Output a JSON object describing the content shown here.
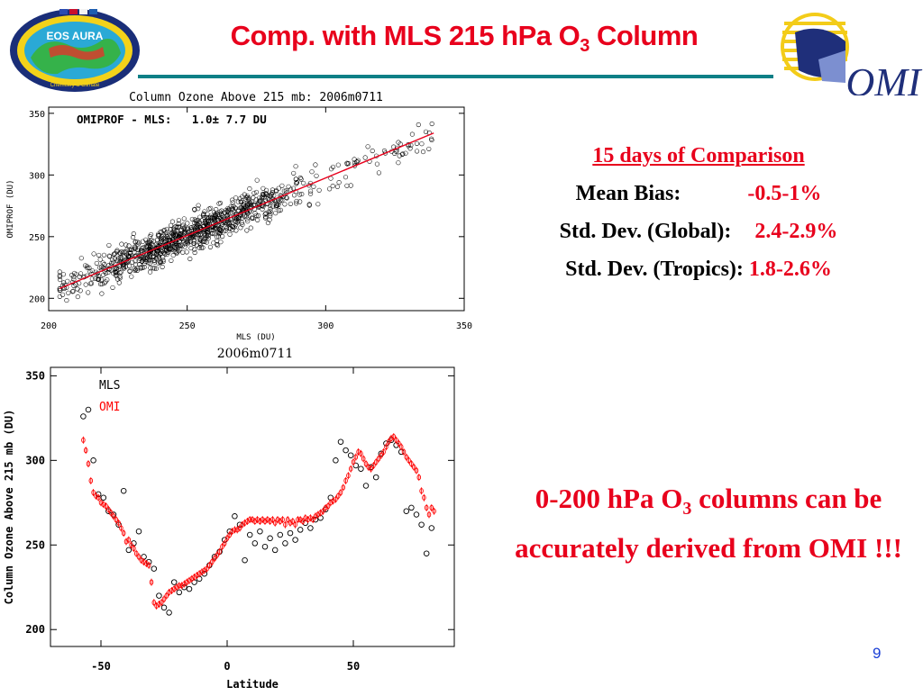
{
  "header": {
    "title_main": "Comp. with MLS 215 hPa O",
    "title_sub": "3",
    "title_tail": " Column"
  },
  "logos": {
    "aura_text": "EOS AURA",
    "aura_ring_text": "Chemistry & Climate",
    "omi_text": "OMI"
  },
  "stats": {
    "heading": "15 days of Comparison",
    "rows": [
      {
        "label": "Mean Bias:",
        "value": "-0.5-1%"
      },
      {
        "label": "Std. Dev. (Global):",
        "value": "2.4-2.9%"
      },
      {
        "label": "Std. Dev. (Tropics):",
        "value": "1.8-2.6%"
      }
    ]
  },
  "conclusion": {
    "part1": "0-200 hPa O",
    "sub": "3",
    "part2": " columns can be accurately derived from OMI !!!"
  },
  "page_number": "9",
  "colors": {
    "accent_red": "#e8001c",
    "rule_teal": "#0e7f86",
    "page_number_blue": "#1a3fd6",
    "omi_series": "#ff0000",
    "mls_series": "#000000"
  },
  "chart_data": [
    {
      "type": "scatter",
      "title": "Column Ozone Above 215 mb: 2006m0711",
      "annotation": "OMIPROF - MLS:   1.0± 7.7 DU",
      "xlabel": "MLS (DU)",
      "ylabel": "OMIPROF (DU)",
      "xlim": [
        200,
        350
      ],
      "ylim": [
        190,
        355
      ],
      "xticks": [
        200,
        250,
        300,
        350
      ],
      "yticks": [
        200,
        250,
        300,
        350
      ],
      "fit_line": {
        "x": [
          204,
          339
        ],
        "y": [
          208,
          334
        ]
      },
      "points_summary": {
        "n_approx": 1000,
        "x_range": [
          204,
          339
        ],
        "mean_diff": 1.0,
        "std_diff": 7.7
      }
    },
    {
      "type": "scatter",
      "title": "2006m0711",
      "xlabel": "Latitude",
      "ylabel": "Column Ozone Above 215 mb (DU)",
      "xlim": [
        -70,
        90
      ],
      "ylim": [
        190,
        355
      ],
      "xticks": [
        -50,
        0,
        50
      ],
      "yticks": [
        200,
        250,
        300,
        350
      ],
      "series": [
        {
          "name": "MLS",
          "x": [
            -57,
            -55,
            -53,
            -51,
            -49,
            -47,
            -45,
            -43,
            -41,
            -39,
            -37,
            -35,
            -33,
            -31,
            -29,
            -27,
            -25,
            -23,
            -21,
            -19,
            -17,
            -15,
            -13,
            -11,
            -9,
            -7,
            -5,
            -3,
            -1,
            1,
            3,
            5,
            7,
            9,
            11,
            13,
            15,
            17,
            19,
            21,
            23,
            25,
            27,
            29,
            31,
            33,
            35,
            37,
            39,
            41,
            43,
            45,
            47,
            49,
            51,
            53,
            55,
            57,
            59,
            61,
            63,
            65,
            67,
            69,
            71,
            73,
            75,
            77,
            79,
            81
          ],
          "y": [
            326,
            330,
            300,
            280,
            278,
            270,
            268,
            262,
            282,
            247,
            251,
            258,
            243,
            240,
            236,
            220,
            213,
            210,
            228,
            222,
            225,
            224,
            228,
            230,
            233,
            238,
            243,
            246,
            253,
            258,
            267,
            262,
            241,
            256,
            251,
            258,
            249,
            254,
            247,
            256,
            251,
            257,
            253,
            259,
            263,
            260,
            265,
            266,
            271,
            278,
            300,
            311,
            306,
            303,
            297,
            295,
            285,
            296,
            290,
            304,
            310,
            312,
            309,
            305,
            270,
            272,
            268,
            262,
            245,
            260
          ]
        },
        {
          "name": "OMI",
          "x": [
            -57,
            -56,
            -55,
            -54,
            -53,
            -52,
            -51,
            -50,
            -49,
            -48,
            -47,
            -46,
            -45,
            -44,
            -43,
            -42,
            -41,
            -40,
            -39,
            -38,
            -37,
            -36,
            -35,
            -34,
            -33,
            -32,
            -31,
            -30,
            -29,
            -28,
            -27,
            -26,
            -25,
            -24,
            -23,
            -22,
            -21,
            -20,
            -19,
            -18,
            -17,
            -16,
            -15,
            -14,
            -13,
            -12,
            -11,
            -10,
            -9,
            -8,
            -7,
            -6,
            -5,
            -4,
            -3,
            -2,
            -1,
            0,
            1,
            2,
            3,
            4,
            5,
            6,
            7,
            8,
            9,
            10,
            11,
            12,
            13,
            14,
            15,
            16,
            17,
            18,
            19,
            20,
            21,
            22,
            23,
            24,
            25,
            26,
            27,
            28,
            29,
            30,
            31,
            32,
            33,
            34,
            35,
            36,
            37,
            38,
            39,
            40,
            41,
            42,
            43,
            44,
            45,
            46,
            47,
            48,
            49,
            50,
            51,
            52,
            53,
            54,
            55,
            56,
            57,
            58,
            59,
            60,
            61,
            62,
            63,
            64,
            65,
            66,
            67,
            68,
            69,
            70,
            71,
            72,
            73,
            74,
            75,
            76,
            77,
            78,
            79,
            80,
            81,
            82
          ],
          "y": [
            312,
            306,
            298,
            288,
            281,
            279,
            278,
            275,
            274,
            273,
            271,
            269,
            267,
            265,
            263,
            260,
            257,
            252,
            253,
            250,
            248,
            245,
            243,
            241,
            240,
            239,
            238,
            228,
            216,
            214,
            215,
            216,
            218,
            220,
            222,
            223,
            224,
            225,
            226,
            226,
            227,
            228,
            229,
            230,
            231,
            232,
            233,
            234,
            235,
            236,
            238,
            240,
            242,
            244,
            246,
            249,
            251,
            254,
            256,
            258,
            259,
            259,
            260,
            262,
            263,
            264,
            265,
            265,
            264,
            265,
            264,
            265,
            264,
            265,
            264,
            265,
            263,
            265,
            264,
            265,
            262,
            265,
            263,
            264,
            262,
            265,
            265,
            264,
            266,
            265,
            266,
            265,
            267,
            268,
            269,
            270,
            272,
            273,
            275,
            276,
            277,
            279,
            281,
            284,
            288,
            291,
            295,
            299,
            302,
            305,
            304,
            301,
            298,
            296,
            295,
            297,
            299,
            301,
            303,
            305,
            308,
            311,
            313,
            314,
            312,
            310,
            308,
            305,
            302,
            300,
            298,
            296,
            294,
            290,
            282,
            278,
            272,
            268,
            272,
            270
          ]
        }
      ]
    }
  ]
}
